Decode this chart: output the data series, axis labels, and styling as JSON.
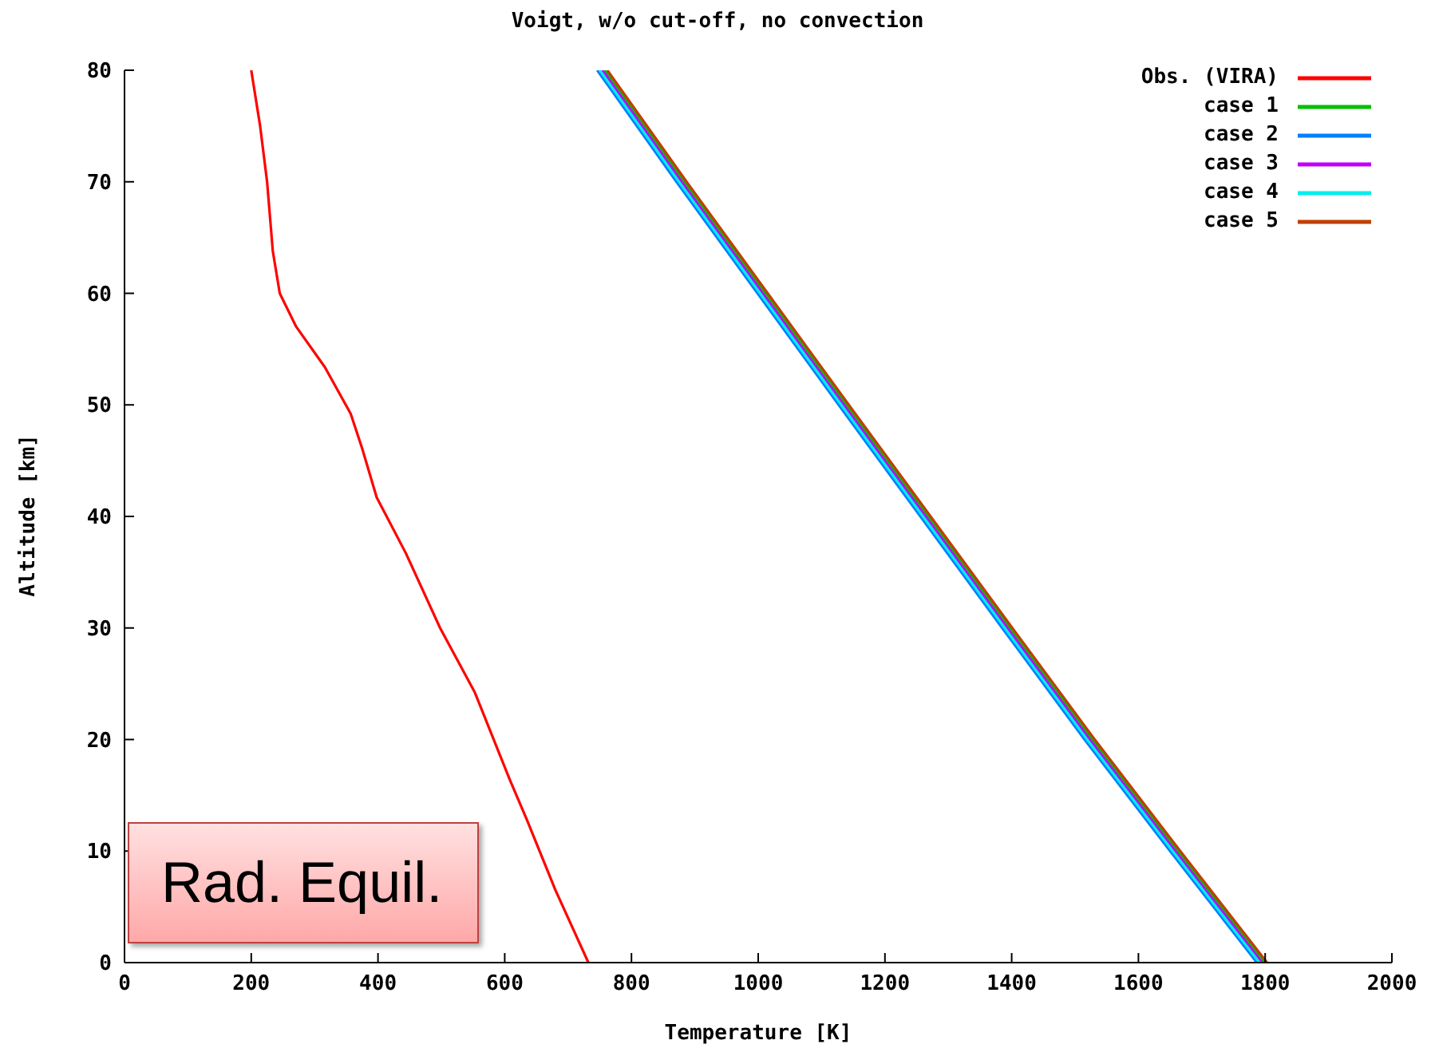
{
  "chart_data": {
    "type": "line",
    "title": "Voigt, w/o cut-off, no convection",
    "xlabel": "Temperature [K]",
    "ylabel": "Altitude [km]",
    "xlim": [
      0,
      2000
    ],
    "xticks": [
      0,
      200,
      400,
      600,
      800,
      1000,
      1200,
      1400,
      1600,
      1800,
      2000
    ],
    "ylim": [
      0,
      80
    ],
    "yticks": [
      0,
      10,
      20,
      30,
      40,
      50,
      60,
      70,
      80
    ],
    "legend": "top right",
    "marker": "none",
    "line_style": "solid",
    "annotations": [
      "Rad. Equil."
    ],
    "series": [
      {
        "name": "Obs. (VIRA)",
        "color": "#ff0000",
        "x": [
          732,
          680,
          635,
          608,
          553,
          498,
          444,
          398,
          375,
          357,
          316,
          271,
          245,
          234,
          225,
          214,
          200
        ],
        "values": [
          0,
          6.5,
          12.8,
          16.4,
          24.2,
          30,
          36.7,
          41.7,
          46.1,
          49.2,
          53.4,
          57,
          60,
          63.8,
          70,
          75,
          80
        ]
      },
      {
        "name": "case 1",
        "color": "#00c000",
        "x": [
          1799,
          1662,
          1527,
          1397,
          1268,
          1139,
          1011,
          883,
          758
        ],
        "values": [
          0,
          10,
          20,
          30,
          40,
          50,
          60,
          70,
          80
        ]
      },
      {
        "name": "case 2",
        "color": "#0080ff",
        "x": [
          1787,
          1650,
          1515,
          1385,
          1256,
          1127,
          999,
          871,
          746
        ],
        "values": [
          0,
          10,
          20,
          30,
          40,
          50,
          60,
          70,
          80
        ]
      },
      {
        "name": "case 3",
        "color": "#c000ff",
        "x": [
          1795,
          1658,
          1523,
          1393,
          1264,
          1135,
          1007,
          879,
          754
        ],
        "values": [
          0,
          10,
          20,
          30,
          40,
          50,
          60,
          70,
          80
        ]
      },
      {
        "name": "case 4",
        "color": "#00eeee",
        "x": [
          1791,
          1654,
          1519,
          1389,
          1260,
          1131,
          1003,
          875,
          750
        ],
        "values": [
          0,
          10,
          20,
          30,
          40,
          50,
          60,
          70,
          80
        ]
      },
      {
        "name": "case 5",
        "color": "#c04000",
        "x": [
          1803,
          1666,
          1531,
          1401,
          1272,
          1143,
          1015,
          887,
          762
        ],
        "values": [
          0,
          10,
          20,
          30,
          40,
          50,
          60,
          70,
          80
        ]
      }
    ]
  }
}
